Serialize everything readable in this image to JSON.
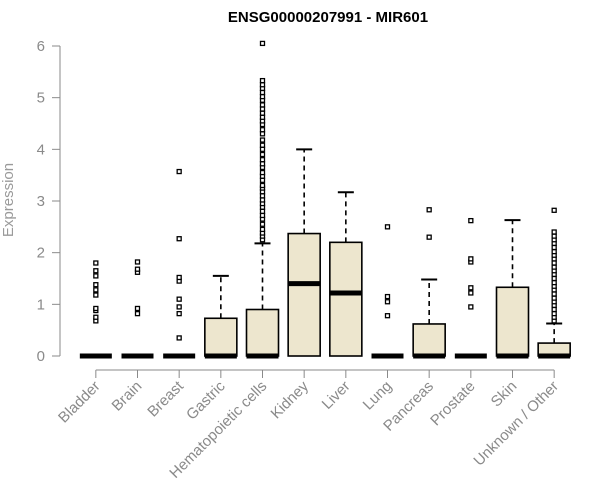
{
  "chart_data": {
    "type": "boxplot",
    "title": "ENSG00000207991 - MIR601",
    "xlabel": "",
    "ylabel": "Expression",
    "ylim": [
      0,
      6
    ],
    "yticks": [
      0,
      1,
      2,
      3,
      4,
      5,
      6
    ],
    "grid": false,
    "colors": {
      "box_fill": "#ede6ce",
      "box_stroke": "#000000",
      "axis": "#8a8a8a",
      "title": "#000000"
    },
    "categories": [
      "Bladder",
      "Brain",
      "Breast",
      "Gastric",
      "Hematopoietic cells",
      "Kidney",
      "Liver",
      "Lung",
      "Pancreas",
      "Prostate",
      "Skin",
      "Unknown / Other"
    ],
    "boxes": [
      {
        "category": "Bladder",
        "q1": 0,
        "median": 0,
        "q3": 0,
        "whisker_low": 0,
        "whisker_high": 0,
        "outliers": [
          0.68,
          0.75,
          0.88,
          0.92,
          1.18,
          1.28,
          1.38,
          1.55,
          1.65,
          1.8
        ]
      },
      {
        "category": "Brain",
        "q1": 0,
        "median": 0,
        "q3": 0,
        "whisker_low": 0,
        "whisker_high": 0,
        "outliers": [
          0.82,
          0.92,
          1.62,
          1.68,
          1.82
        ]
      },
      {
        "category": "Breast",
        "q1": 0,
        "median": 0,
        "q3": 0,
        "whisker_low": 0,
        "whisker_high": 0,
        "outliers": [
          0.35,
          0.82,
          0.95,
          1.1,
          1.45,
          1.52,
          2.27,
          3.57
        ]
      },
      {
        "category": "Gastric",
        "q1": 0,
        "median": 0,
        "q3": 0.73,
        "whisker_low": 0,
        "whisker_high": 1.55,
        "outliers": []
      },
      {
        "category": "Hematopoietic cells",
        "q1": 0,
        "median": 0,
        "q3": 0.9,
        "whisker_low": 0,
        "whisker_high": 2.18,
        "outliers": [
          2.25,
          2.32,
          2.38,
          2.45,
          2.55,
          2.65,
          2.72,
          2.8,
          2.88,
          2.95,
          3.02,
          3.1,
          3.18,
          3.25,
          3.3,
          3.4,
          3.48,
          3.55,
          3.65,
          3.72,
          3.8,
          3.9,
          4.0,
          4.08,
          4.18,
          4.3,
          4.38,
          4.48,
          4.55,
          4.62,
          4.7,
          4.78,
          4.86,
          4.95,
          5.02,
          5.1,
          5.18,
          5.25,
          5.33,
          6.05
        ]
      },
      {
        "category": "Kidney",
        "q1": 0,
        "median": 1.4,
        "q3": 2.37,
        "whisker_low": 0,
        "whisker_high": 4.0,
        "outliers": []
      },
      {
        "category": "Liver",
        "q1": 0,
        "median": 1.22,
        "q3": 2.2,
        "whisker_low": 0,
        "whisker_high": 3.17,
        "outliers": []
      },
      {
        "category": "Lung",
        "q1": 0,
        "median": 0,
        "q3": 0,
        "whisker_low": 0,
        "whisker_high": 0,
        "outliers": [
          0.78,
          1.05,
          1.15,
          2.5
        ]
      },
      {
        "category": "Pancreas",
        "q1": 0,
        "median": 0,
        "q3": 0.62,
        "whisker_low": 0,
        "whisker_high": 1.48,
        "outliers": [
          2.3,
          2.83
        ]
      },
      {
        "category": "Prostate",
        "q1": 0,
        "median": 0,
        "q3": 0,
        "whisker_low": 0,
        "whisker_high": 0,
        "outliers": [
          0.95,
          1.22,
          1.32,
          1.82,
          1.88,
          2.62
        ]
      },
      {
        "category": "Skin",
        "q1": 0,
        "median": 0,
        "q3": 1.33,
        "whisker_low": 0,
        "whisker_high": 2.63,
        "outliers": []
      },
      {
        "category": "Unknown / Other",
        "q1": 0,
        "median": 0,
        "q3": 0.25,
        "whisker_low": 0,
        "whisker_high": 0.63,
        "outliers": [
          0.68,
          0.75,
          0.82,
          0.9,
          0.98,
          1.05,
          1.12,
          1.2,
          1.28,
          1.35,
          1.42,
          1.5,
          1.58,
          1.65,
          1.72,
          1.8,
          1.88,
          1.95,
          2.02,
          2.1,
          2.18,
          2.25,
          2.32,
          2.4,
          2.82
        ]
      }
    ]
  }
}
